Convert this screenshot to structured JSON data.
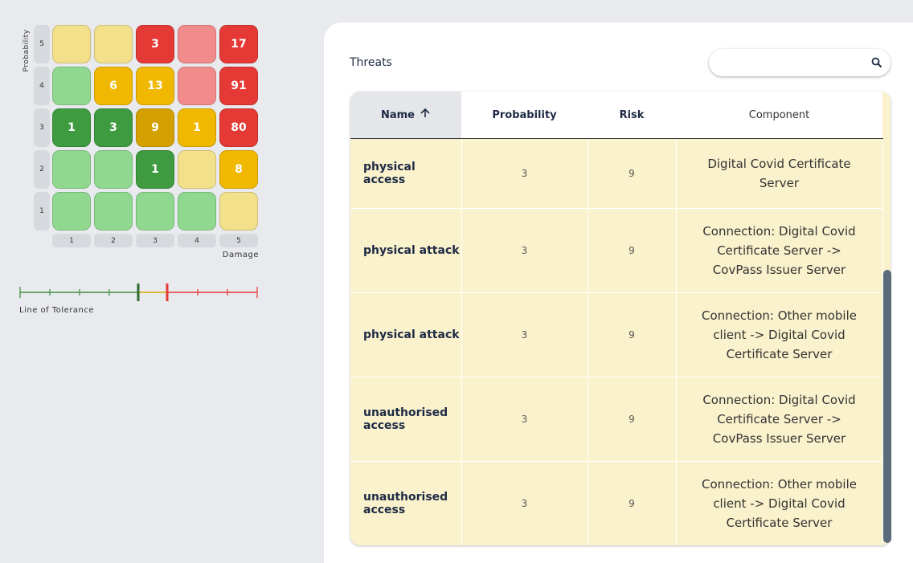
{
  "matrix": {
    "y_label": "Probability",
    "x_label": "Damage",
    "row_labels": [
      5,
      4,
      3,
      2,
      1
    ],
    "column_labels": [
      1,
      2,
      3,
      4,
      5
    ],
    "cells": [
      [
        null,
        null,
        3,
        null,
        17
      ],
      [
        null,
        6,
        13,
        null,
        91
      ],
      [
        1,
        3,
        9,
        1,
        80
      ],
      [
        null,
        null,
        1,
        null,
        8
      ],
      [
        null,
        null,
        null,
        null,
        null
      ]
    ],
    "colors": [
      [
        "#f3e08a",
        "#f3e08a",
        "#e53935",
        "#f28b8b",
        "#e53935"
      ],
      [
        "#90d890",
        "#f0b800",
        "#f0b800",
        "#f28b8b",
        "#e53935"
      ],
      [
        "#3f9b3f",
        "#3f9b3f",
        "#d4a000",
        "#f0b800",
        "#e53935"
      ],
      [
        "#90d890",
        "#90d890",
        "#3f9b3f",
        "#f3e08a",
        "#f0b800"
      ],
      [
        "#90d890",
        "#90d890",
        "#90d890",
        "#90d890",
        "#f3e08a"
      ]
    ]
  },
  "tolerance": {
    "label": "Line of Tolerance"
  },
  "threats": {
    "title": "Threats",
    "columns": [
      "Name",
      "Probability",
      "Risk",
      "Component"
    ],
    "rows": [
      [
        "physical access",
        "3",
        "9",
        "Digital Covid Certificate Server"
      ],
      [
        "physical attack",
        "3",
        "9",
        "Connection: Digital Covid Certificate Server -> CovPass Issuer Server"
      ],
      [
        "physical attack",
        "3",
        "9",
        "Connection: Other mobile client -> Digital Covid Certificate Server"
      ],
      [
        "unauthorised access",
        "3",
        "9",
        "Connection: Digital Covid Certificate Server -> CovPass Issuer Server"
      ],
      [
        "unauthorised access",
        "3",
        "9",
        "Connection: Other mobile client -> Digital Covid Certificate Server"
      ]
    ]
  }
}
